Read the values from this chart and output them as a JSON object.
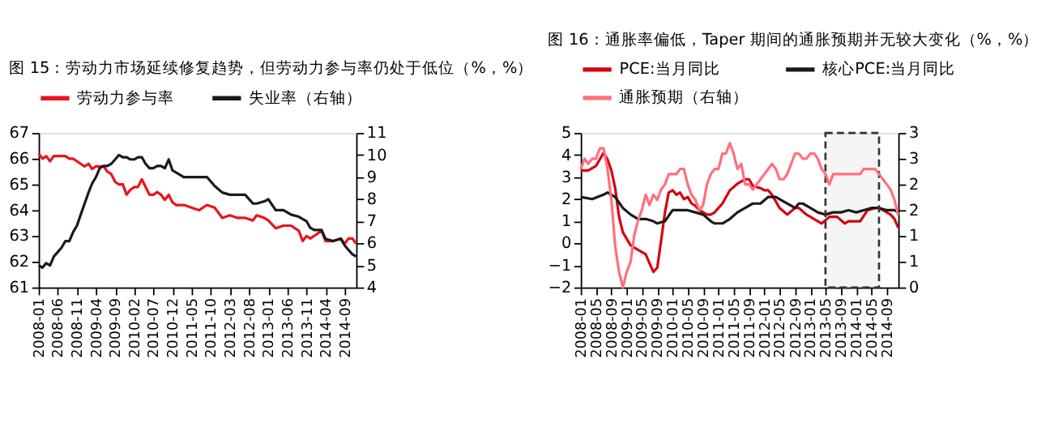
{
  "chart_data": [
    {
      "type": "line",
      "title": "图 15：劳动力市场延续修复趋势，但劳动力参与率仍处于低位（%，%）",
      "legend": "top",
      "grid": false,
      "xlim": [
        "2008-01",
        "2014-12"
      ],
      "xticks": [
        "2008-01",
        "2008-06",
        "2008-11",
        "2009-04",
        "2009-09",
        "2010-02",
        "2010-07",
        "2010-12",
        "2011-05",
        "2011-10",
        "2012-03",
        "2012-08",
        "2013-01",
        "2013-06",
        "2013-11",
        "2014-04",
        "2014-09"
      ],
      "ylim": [
        61,
        67
      ],
      "yticks": [
        61,
        62,
        63,
        64,
        65,
        66,
        67
      ],
      "y2lim": [
        4,
        11
      ],
      "y2ticks": [
        4,
        5,
        6,
        7,
        8,
        9,
        10,
        11
      ],
      "series": [
        {
          "name": "劳动力参与率",
          "color": "#e8141c",
          "x": [
            "2008-01",
            "2008-02",
            "2008-03",
            "2008-04",
            "2008-05",
            "2008-06",
            "2008-07",
            "2008-08",
            "2008-09",
            "2008-10",
            "2008-11",
            "2008-12",
            "2009-01",
            "2009-02",
            "2009-03",
            "2009-04",
            "2009-05",
            "2009-06",
            "2009-07",
            "2009-08",
            "2009-09",
            "2009-10",
            "2009-11",
            "2009-12",
            "2010-01",
            "2010-02",
            "2010-03",
            "2010-04",
            "2010-05",
            "2010-06",
            "2010-07",
            "2010-08",
            "2010-09",
            "2010-10",
            "2010-11",
            "2010-12",
            "2011-01",
            "2011-03",
            "2011-05",
            "2011-07",
            "2011-09",
            "2011-11",
            "2012-01",
            "2012-03",
            "2012-05",
            "2012-07",
            "2012-09",
            "2012-10",
            "2012-12",
            "2013-01",
            "2013-03",
            "2013-05",
            "2013-07",
            "2013-09",
            "2013-10",
            "2013-11",
            "2013-12",
            "2014-01",
            "2014-03",
            "2014-04",
            "2014-06",
            "2014-08",
            "2014-09",
            "2014-10",
            "2014-11",
            "2014-12"
          ],
          "values": [
            66.2,
            66.0,
            66.1,
            65.9,
            66.1,
            66.1,
            66.1,
            66.1,
            66.0,
            66.0,
            65.9,
            65.8,
            65.7,
            65.8,
            65.6,
            65.7,
            65.7,
            65.7,
            65.5,
            65.4,
            65.1,
            65.0,
            65.0,
            64.6,
            64.8,
            64.9,
            64.9,
            65.2,
            64.9,
            64.6,
            64.6,
            64.7,
            64.6,
            64.4,
            64.6,
            64.3,
            64.2,
            64.2,
            64.1,
            64.0,
            64.2,
            64.1,
            63.7,
            63.8,
            63.7,
            63.7,
            63.6,
            63.8,
            63.7,
            63.6,
            63.3,
            63.4,
            63.4,
            63.2,
            62.8,
            63.0,
            62.9,
            63.0,
            63.2,
            62.8,
            62.8,
            62.9,
            62.7,
            62.9,
            62.9,
            62.7
          ]
        },
        {
          "name": "失业率（右轴）",
          "color": "#1a1a1a",
          "axis": "y2",
          "x": [
            "2008-01",
            "2008-02",
            "2008-03",
            "2008-04",
            "2008-05",
            "2008-06",
            "2008-07",
            "2008-08",
            "2008-09",
            "2008-10",
            "2008-11",
            "2008-12",
            "2009-01",
            "2009-02",
            "2009-03",
            "2009-04",
            "2009-05",
            "2009-06",
            "2009-07",
            "2009-08",
            "2009-09",
            "2009-10",
            "2009-11",
            "2009-12",
            "2010-01",
            "2010-02",
            "2010-03",
            "2010-04",
            "2010-05",
            "2010-06",
            "2010-07",
            "2010-08",
            "2010-09",
            "2010-10",
            "2010-11",
            "2010-12",
            "2011-01",
            "2011-03",
            "2011-05",
            "2011-07",
            "2011-09",
            "2011-11",
            "2012-01",
            "2012-03",
            "2012-05",
            "2012-07",
            "2012-09",
            "2012-10",
            "2012-12",
            "2013-01",
            "2013-03",
            "2013-05",
            "2013-07",
            "2013-09",
            "2013-11",
            "2013-12",
            "2014-01",
            "2014-03",
            "2014-04",
            "2014-06",
            "2014-08",
            "2014-09",
            "2014-10",
            "2014-11",
            "2014-12"
          ],
          "values": [
            5.0,
            4.9,
            5.1,
            5.0,
            5.4,
            5.6,
            5.8,
            6.1,
            6.1,
            6.5,
            6.8,
            7.3,
            7.8,
            8.3,
            8.7,
            9.0,
            9.4,
            9.5,
            9.5,
            9.6,
            9.8,
            10.0,
            9.9,
            9.9,
            9.8,
            9.8,
            9.9,
            9.9,
            9.6,
            9.4,
            9.4,
            9.5,
            9.5,
            9.4,
            9.8,
            9.3,
            9.2,
            9.0,
            9.0,
            9.0,
            9.0,
            8.6,
            8.3,
            8.2,
            8.2,
            8.2,
            7.8,
            7.8,
            7.9,
            8.0,
            7.5,
            7.5,
            7.3,
            7.2,
            7.0,
            6.7,
            6.6,
            6.6,
            6.2,
            6.1,
            6.2,
            5.9,
            5.7,
            5.5,
            5.4
          ]
        }
      ]
    },
    {
      "type": "line",
      "title": "图 16：通胀率偏低，Taper 期间的通胀预期并无较大变化（%，%）",
      "legend": "top",
      "grid": false,
      "xlim": [
        "2008-01",
        "2014-12"
      ],
      "xticks": [
        "2008-01",
        "2008-05",
        "2008-09",
        "2009-01",
        "2009-05",
        "2009-09",
        "2010-01",
        "2010-05",
        "2010-09",
        "2011-01",
        "2011-05",
        "2011-09",
        "2012-01",
        "2012-05",
        "2012-09",
        "2013-01",
        "2013-05",
        "2013-09",
        "2014-01",
        "2014-05",
        "2014-09"
      ],
      "ylim": [
        -2,
        5
      ],
      "yticks": [
        -2,
        -1,
        0,
        1,
        2,
        3,
        4,
        5
      ],
      "y2lim": [
        0,
        3
      ],
      "y2ticks": [
        0,
        {
          "value": 0.5,
          "label": "1"
        },
        1,
        {
          "value": 1.5,
          "label": "2"
        },
        2,
        {
          "value": 2.5,
          "label": "3"
        },
        3
      ],
      "bands": [
        {
          "axis": "x",
          "from": "2013-05",
          "to": "2014-07",
          "color": "#333333"
        }
      ],
      "series": [
        {
          "name": "PCE:当月同比",
          "color": "#d7000f",
          "x": [
            "2008-01",
            "2008-03",
            "2008-05",
            "2008-07",
            "2008-08",
            "2008-09",
            "2008-10",
            "2008-11",
            "2008-12",
            "2009-01",
            "2009-02",
            "2009-04",
            "2009-06",
            "2009-07",
            "2009-08",
            "2009-09",
            "2009-10",
            "2009-11",
            "2009-12",
            "2010-01",
            "2010-02",
            "2010-03",
            "2010-04",
            "2010-05",
            "2010-06",
            "2010-07",
            "2010-08",
            "2010-09",
            "2010-10",
            "2010-11",
            "2010-12",
            "2011-02",
            "2011-04",
            "2011-06",
            "2011-08",
            "2011-09",
            "2011-10",
            "2011-12",
            "2012-01",
            "2012-02",
            "2012-03",
            "2012-05",
            "2012-07",
            "2012-09",
            "2012-10",
            "2012-12",
            "2013-01",
            "2013-03",
            "2013-04",
            "2013-06",
            "2013-08",
            "2013-10",
            "2013-11",
            "2014-01",
            "2014-02",
            "2014-04",
            "2014-06",
            "2014-07",
            "2014-08",
            "2014-09",
            "2014-10",
            "2014-11",
            "2014-12"
          ],
          "values": [
            3.3,
            3.3,
            3.5,
            4.1,
            3.8,
            3.3,
            2.5,
            1.2,
            0.5,
            0.2,
            -0.1,
            -0.3,
            -0.5,
            -0.9,
            -1.3,
            -1.1,
            0.1,
            1.4,
            2.3,
            2.4,
            2.2,
            2.3,
            2.0,
            2.1,
            1.8,
            1.7,
            1.5,
            1.4,
            1.3,
            1.3,
            1.4,
            1.8,
            2.4,
            2.7,
            2.9,
            2.9,
            2.6,
            2.5,
            2.4,
            2.4,
            2.2,
            1.6,
            1.3,
            1.6,
            1.6,
            1.3,
            1.2,
            1.0,
            0.9,
            1.2,
            1.2,
            0.9,
            1.0,
            1.0,
            1.0,
            1.5,
            1.6,
            1.6,
            1.5,
            1.4,
            1.3,
            1.1,
            0.7
          ]
        },
        {
          "name": "核心PCE:当月同比",
          "color": "#1a1a1a",
          "x": [
            "2008-01",
            "2008-04",
            "2008-07",
            "2008-08",
            "2008-10",
            "2008-12",
            "2009-02",
            "2009-04",
            "2009-06",
            "2009-08",
            "2009-09",
            "2009-11",
            "2010-01",
            "2010-03",
            "2010-05",
            "2010-07",
            "2010-09",
            "2010-11",
            "2010-12",
            "2011-02",
            "2011-04",
            "2011-06",
            "2011-08",
            "2011-10",
            "2011-12",
            "2012-02",
            "2012-04",
            "2012-06",
            "2012-08",
            "2012-09",
            "2012-10",
            "2012-11",
            "2013-01",
            "2013-03",
            "2013-05",
            "2013-07",
            "2013-09",
            "2013-11",
            "2014-01",
            "2014-03",
            "2014-05",
            "2014-07",
            "2014-09",
            "2014-11",
            "2014-12"
          ],
          "values": [
            2.1,
            2.0,
            2.2,
            2.3,
            2.1,
            1.6,
            1.3,
            1.1,
            1.1,
            1.0,
            0.9,
            1.0,
            1.5,
            1.5,
            1.5,
            1.4,
            1.3,
            1.0,
            0.9,
            0.9,
            1.1,
            1.4,
            1.6,
            1.8,
            1.8,
            2.1,
            2.1,
            1.9,
            1.7,
            1.6,
            1.8,
            1.8,
            1.6,
            1.4,
            1.3,
            1.4,
            1.4,
            1.5,
            1.4,
            1.5,
            1.6,
            1.6,
            1.5,
            1.5,
            1.4
          ]
        },
        {
          "name": "通胀预期（右轴）",
          "color": "#ff6f7d",
          "axis": "y2",
          "x": [
            "2008-01",
            "2008-02",
            "2008-03",
            "2008-04",
            "2008-05",
            "2008-06",
            "2008-07",
            "2008-08",
            "2008-09",
            "2008-10",
            "2008-11",
            "2008-12",
            "2009-01",
            "2009-02",
            "2009-03",
            "2009-04",
            "2009-05",
            "2009-06",
            "2009-07",
            "2009-08",
            "2009-09",
            "2009-10",
            "2009-11",
            "2009-12",
            "2010-01",
            "2010-02",
            "2010-03",
            "2010-04",
            "2010-05",
            "2010-06",
            "2010-07",
            "2010-08",
            "2010-09",
            "2010-10",
            "2010-11",
            "2010-12",
            "2011-01",
            "2011-02",
            "2011-03",
            "2011-04",
            "2011-05",
            "2011-06",
            "2011-07",
            "2011-08",
            "2011-09",
            "2011-10",
            "2011-11",
            "2011-12",
            "2012-01",
            "2012-02",
            "2012-03",
            "2012-04",
            "2012-05",
            "2012-06",
            "2012-07",
            "2012-08",
            "2012-09",
            "2012-10",
            "2012-11",
            "2012-12",
            "2013-01",
            "2013-02",
            "2013-03",
            "2013-04",
            "2013-05",
            "2013-06",
            "2013-07",
            "2013-08",
            "2013-09",
            "2013-10",
            "2013-11",
            "2013-12",
            "2014-01",
            "2014-02",
            "2014-03",
            "2014-04",
            "2014-05",
            "2014-06",
            "2014-07",
            "2014-08",
            "2014-09",
            "2014-10",
            "2014-11",
            "2014-12"
          ],
          "values": [
            2.3,
            2.5,
            2.4,
            2.5,
            2.5,
            2.7,
            2.7,
            2.3,
            1.7,
            0.8,
            0.3,
            0.0,
            0.3,
            0.5,
            1.0,
            1.3,
            1.5,
            1.8,
            1.6,
            1.8,
            1.7,
            1.9,
            2.0,
            2.2,
            2.2,
            2.2,
            2.3,
            2.3,
            2.0,
            1.8,
            1.7,
            1.5,
            1.6,
            2.0,
            2.2,
            2.3,
            2.3,
            2.6,
            2.6,
            2.8,
            2.6,
            2.3,
            2.4,
            2.0,
            2.0,
            1.9,
            2.0,
            2.1,
            2.2,
            2.3,
            2.4,
            2.3,
            2.1,
            2.1,
            2.2,
            2.4,
            2.6,
            2.6,
            2.5,
            2.5,
            2.6,
            2.6,
            2.5,
            2.3,
            2.2,
            2.0,
            2.2,
            2.2,
            2.2,
            2.2,
            2.2,
            2.2,
            2.2,
            2.2,
            2.3,
            2.3,
            2.3,
            2.3,
            2.2,
            2.1,
            2.0,
            1.9,
            1.7,
            1.4
          ]
        }
      ]
    }
  ]
}
